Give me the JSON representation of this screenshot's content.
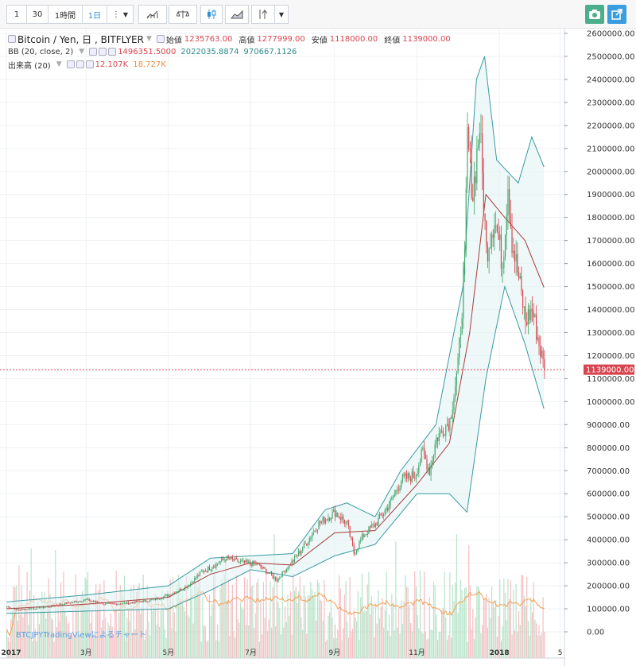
{
  "toolbar": {
    "intervals": [
      "1",
      "30",
      "1時間",
      "1日"
    ],
    "active_interval": "1日"
  },
  "legend": {
    "symbol": "Bitcoin / Yen, 日 , BITFLYER",
    "ohlc": [
      {
        "label": "始値",
        "value": "1235763.00"
      },
      {
        "label": "高値",
        "value": "1277999.00"
      },
      {
        "label": "安値",
        "value": "1118000.00"
      },
      {
        "label": "終値",
        "value": "1139000.00"
      }
    ],
    "bb": {
      "label": "BB (20, close, 2)",
      "middle": "1496351.5000",
      "upper": "2022035.8874",
      "lower": "970667.1126"
    },
    "volume": {
      "label": "出来高 (20)",
      "value": "12.107K",
      "ma": "18.727K"
    }
  },
  "watermark": "BTCJPYTradingViewによるチャート",
  "colors": {
    "up": "#41a66a",
    "down": "#d9454f",
    "bb_upper": "#3a9aa0",
    "bb_basis": "#a83b3b",
    "vol_ma": "#f59e55"
  },
  "chart_data": {
    "type": "candlestick",
    "title": "Bitcoin / Yen, 日 , BITFLYER",
    "last_price": 1139000,
    "price_axis": {
      "min": 0,
      "max": 2600000,
      "step": 100000,
      "tick_labels": [
        "0.00",
        "100000.00",
        "200000.00",
        "300000.00",
        "400000.00",
        "500000.00",
        "600000.00",
        "700000.00",
        "800000.00",
        "900000.00",
        "1000000.00",
        "1100000.00",
        "1200000.00",
        "1300000.00",
        "1400000.00",
        "1500000.00",
        "1600000.00",
        "1700000.00",
        "1800000.00",
        "1900000.00",
        "2000000.00",
        "2100000.00",
        "2200000.00",
        "2300000.00",
        "2400000.00",
        "2500000.00",
        "2600000.00"
      ],
      "last_label": "1139000.00"
    },
    "time_axis": {
      "labels": [
        "2017",
        "3月",
        "5月",
        "7月",
        "9月",
        "11月",
        "2018",
        "5"
      ]
    },
    "close_path": [
      [
        "2017-01-01",
        110000
      ],
      [
        "2017-01-10",
        95000
      ],
      [
        "2017-02-01",
        110000
      ],
      [
        "2017-03-01",
        140000
      ],
      [
        "2017-03-15",
        120000
      ],
      [
        "2017-04-01",
        125000
      ],
      [
        "2017-04-20",
        140000
      ],
      [
        "2017-05-01",
        160000
      ],
      [
        "2017-05-15",
        200000
      ],
      [
        "2017-05-25",
        260000
      ],
      [
        "2017-06-01",
        280000
      ],
      [
        "2017-06-12",
        320000
      ],
      [
        "2017-06-25",
        300000
      ],
      [
        "2017-07-05",
        295000
      ],
      [
        "2017-07-15",
        250000
      ],
      [
        "2017-07-20",
        225000
      ],
      [
        "2017-08-01",
        310000
      ],
      [
        "2017-08-10",
        380000
      ],
      [
        "2017-08-20",
        470000
      ],
      [
        "2017-09-01",
        520000
      ],
      [
        "2017-09-10",
        470000
      ],
      [
        "2017-09-15",
        340000
      ],
      [
        "2017-09-22",
        420000
      ],
      [
        "2017-10-01",
        470000
      ],
      [
        "2017-10-12",
        560000
      ],
      [
        "2017-10-20",
        660000
      ],
      [
        "2017-10-30",
        680000
      ],
      [
        "2017-11-05",
        780000
      ],
      [
        "2017-11-10",
        700000
      ],
      [
        "2017-11-15",
        840000
      ],
      [
        "2017-11-25",
        920000
      ],
      [
        "2017-12-01",
        1150000
      ],
      [
        "2017-12-06",
        1600000
      ],
      [
        "2017-12-08",
        2150000
      ],
      [
        "2017-12-12",
        1900000
      ],
      [
        "2017-12-17",
        2200000
      ],
      [
        "2017-12-22",
        1650000
      ],
      [
        "2017-12-28",
        1800000
      ],
      [
        "2018-01-03",
        1600000
      ],
      [
        "2018-01-07",
        1950000
      ],
      [
        "2018-01-10",
        1700000
      ],
      [
        "2018-01-16",
        1500000
      ],
      [
        "2018-01-20",
        1350000
      ],
      [
        "2018-01-25",
        1400000
      ],
      [
        "2018-01-30",
        1250000
      ],
      [
        "2018-02-03",
        1139000
      ]
    ],
    "bollinger_upper": [
      [
        "2017-01-01",
        130000
      ],
      [
        "2017-03-01",
        160000
      ],
      [
        "2017-05-01",
        200000
      ],
      [
        "2017-06-01",
        320000
      ],
      [
        "2017-07-01",
        330000
      ],
      [
        "2017-08-01",
        340000
      ],
      [
        "2017-08-25",
        530000
      ],
      [
        "2017-09-10",
        560000
      ],
      [
        "2017-10-01",
        500000
      ],
      [
        "2017-10-20",
        700000
      ],
      [
        "2017-11-15",
        900000
      ],
      [
        "2017-12-05",
        1500000
      ],
      [
        "2017-12-15",
        2400000
      ],
      [
        "2017-12-21",
        2500000
      ],
      [
        "2017-12-30",
        2050000
      ],
      [
        "2018-01-15",
        1950000
      ],
      [
        "2018-01-25",
        2150000
      ],
      [
        "2018-02-03",
        2020000
      ]
    ],
    "bollinger_basis": [
      [
        "2017-01-01",
        100000
      ],
      [
        "2017-03-01",
        120000
      ],
      [
        "2017-05-01",
        150000
      ],
      [
        "2017-06-01",
        250000
      ],
      [
        "2017-07-01",
        300000
      ],
      [
        "2017-08-01",
        290000
      ],
      [
        "2017-09-01",
        430000
      ],
      [
        "2017-10-01",
        440000
      ],
      [
        "2017-11-01",
        640000
      ],
      [
        "2017-11-25",
        820000
      ],
      [
        "2017-12-10",
        1300000
      ],
      [
        "2017-12-22",
        1900000
      ],
      [
        "2018-01-05",
        1800000
      ],
      [
        "2018-01-20",
        1700000
      ],
      [
        "2018-02-03",
        1496000
      ]
    ],
    "bollinger_lower": [
      [
        "2017-01-01",
        80000
      ],
      [
        "2017-03-01",
        90000
      ],
      [
        "2017-05-01",
        100000
      ],
      [
        "2017-06-01",
        180000
      ],
      [
        "2017-07-01",
        270000
      ],
      [
        "2017-08-01",
        240000
      ],
      [
        "2017-09-01",
        330000
      ],
      [
        "2017-10-01",
        380000
      ],
      [
        "2017-11-01",
        600000
      ],
      [
        "2017-11-25",
        600000
      ],
      [
        "2017-12-08",
        520000
      ],
      [
        "2017-12-22",
        1100000
      ],
      [
        "2018-01-05",
        1500000
      ],
      [
        "2018-01-20",
        1250000
      ],
      [
        "2018-02-03",
        970000
      ]
    ],
    "volume_last": "12.107K",
    "volume_ma_last": "18.727K"
  }
}
